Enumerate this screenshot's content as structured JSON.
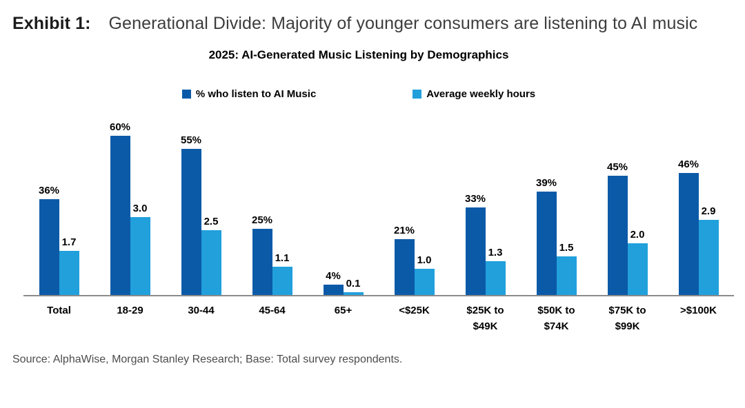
{
  "header": {
    "exhibit_label": "Exhibit 1:",
    "title": "Generational Divide: Majority of younger consumers are listening to AI music"
  },
  "chart_data": {
    "type": "bar",
    "title": "2025: AI-Generated Music Listening by Demographics",
    "categories": [
      "Total",
      "18-29",
      "30-44",
      "45-64",
      "65+",
      "<$25K",
      "$25K to\n$49K",
      "$50K to\n$74K",
      "$75K to\n$99K",
      ">$100K"
    ],
    "series": [
      {
        "name": "% who listen to AI Music",
        "color": "#0b5aa8",
        "unit": "percent",
        "values": [
          36,
          60,
          55,
          25,
          4,
          21,
          33,
          39,
          45,
          46
        ],
        "labels": [
          "36%",
          "60%",
          "55%",
          "25%",
          "4%",
          "21%",
          "33%",
          "39%",
          "45%",
          "46%"
        ]
      },
      {
        "name": "Average weekly hours",
        "color": "#21a0dc",
        "unit": "hours",
        "values": [
          1.7,
          3.0,
          2.5,
          1.1,
          0.1,
          1.0,
          1.3,
          1.5,
          2.0,
          2.9
        ],
        "labels": [
          "1.7",
          "3.0",
          "2.5",
          "1.1",
          "0.1",
          "1.0",
          "1.3",
          "1.5",
          "2.0",
          "2.9"
        ]
      }
    ],
    "legend_position": "top",
    "grid": false,
    "y_axis_visible": false,
    "value_labels": true,
    "axis_line_color": "#8a8a8a"
  },
  "source": "Source: AlphaWise, Morgan Stanley Research; Base: Total survey respondents."
}
